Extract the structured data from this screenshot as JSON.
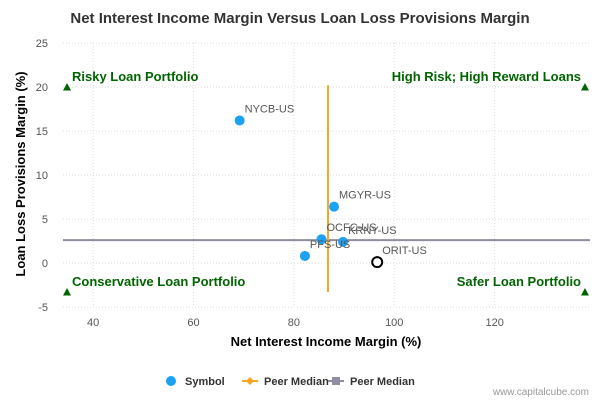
{
  "chart_data": {
    "type": "scatter",
    "title": "Net Interest Income Margin Versus Loan Loss Provisions Margin",
    "xlabel": "Net Interest Income Margin (%)",
    "ylabel": "Loan Loss Provisions Margin (%)",
    "xlim": [
      34,
      139
    ],
    "ylim": [
      -5,
      25
    ],
    "x_ticks": [
      40,
      60,
      80,
      100,
      120
    ],
    "y_ticks": [
      -5,
      0,
      5,
      10,
      15,
      20,
      25
    ],
    "x_tick_labels": [
      "40",
      "60",
      "80",
      "100",
      "120"
    ],
    "y_tick_labels": [
      "-5",
      "0",
      "5",
      "10",
      "15",
      "20",
      "25"
    ],
    "grid": true,
    "points": [
      {
        "name": "NYCB-US",
        "x": 69.2,
        "y": 16.2,
        "color": "#1da1f2",
        "style": "filled"
      },
      {
        "name": "MGYR-US",
        "x": 88,
        "y": 6.4,
        "color": "#1da1f2",
        "style": "filled"
      },
      {
        "name": "OCFC-US",
        "x": 85.5,
        "y": 2.7,
        "color": "#1da1f2",
        "style": "filled"
      },
      {
        "name": "KRNY-US",
        "x": 89.8,
        "y": 2.4,
        "color": "#1da1f2",
        "style": "filled"
      },
      {
        "name": "PFS-US",
        "x": 82.2,
        "y": 0.8,
        "color": "#1da1f2",
        "style": "filled"
      },
      {
        "name": "ORIT-US",
        "x": 96.6,
        "y": 0.1,
        "color": "#000000",
        "style": "hollow"
      }
    ],
    "peer_median_x": 86.8,
    "peer_median_x_range": [
      -3.3,
      20.2
    ],
    "peer_median_y": 2.6,
    "quadrant_markers": [
      {
        "x": 34.8,
        "y": 20.0
      },
      {
        "x": 138.0,
        "y": 20.0
      },
      {
        "x": 34.8,
        "y": -3.3
      },
      {
        "x": 138.0,
        "y": -3.3
      }
    ],
    "quadrant_labels": {
      "top_left": "Risky Loan Portfolio",
      "top_right": "High Risk; High Reward Loans",
      "bottom_left": "Conservative Loan Portfolio",
      "bottom_right": "Safer Loan Portfolio"
    },
    "legend": [
      {
        "label": "Symbol",
        "color": "#1da1f2",
        "marker": "circle"
      },
      {
        "label": "Peer Median",
        "color": "#f5a623",
        "marker": "diamond"
      },
      {
        "label": "Peer Median",
        "color": "#8e8ea0",
        "marker": "square"
      }
    ],
    "legend_position": "bottom",
    "colors": {
      "point": "#1da1f2",
      "vline": "#f5a623",
      "hline": "#8e8ea0",
      "quadrant": "#006400",
      "grid": "#dddddd"
    }
  },
  "credit": "www.capitalcube.com"
}
